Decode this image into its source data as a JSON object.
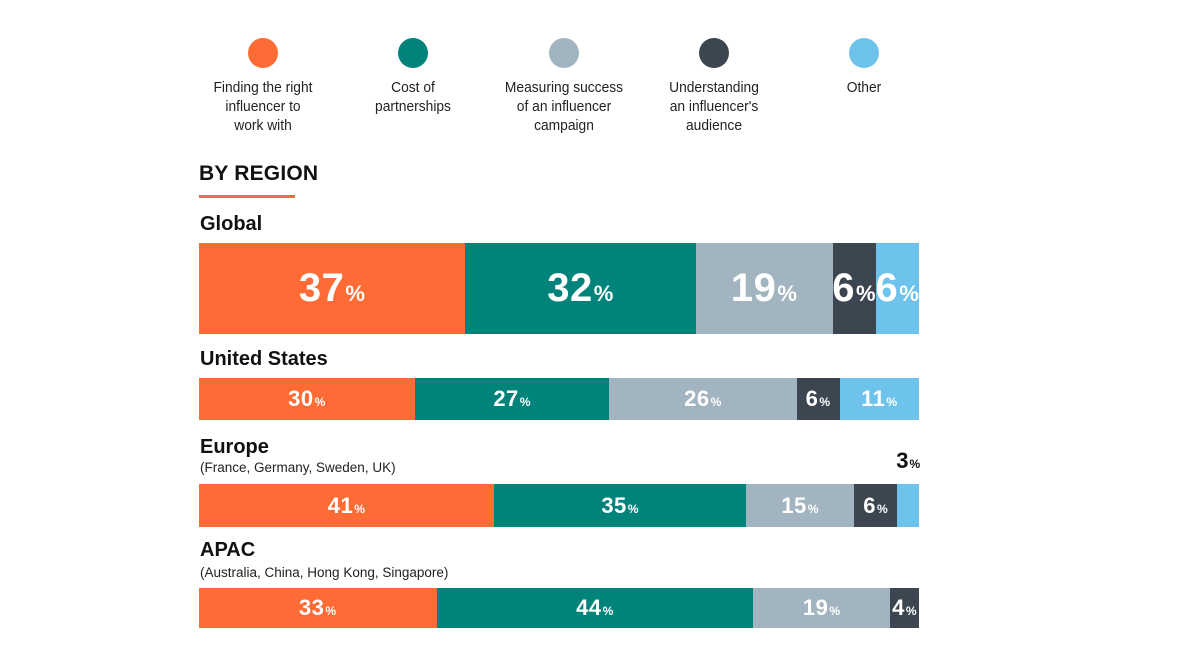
{
  "chart_data": {
    "type": "bar",
    "orientation": "horizontal-stacked-100",
    "section_title": "BY REGION",
    "unit": "%",
    "legend_position": "top",
    "legend": [
      {
        "name": "Finding the right influencer to work with",
        "lines": [
          "Finding the right",
          "influencer to",
          "work with"
        ],
        "color": "#ff6b35"
      },
      {
        "name": "Cost of partnerships",
        "lines": [
          "Cost of",
          "partnerships"
        ],
        "color": "#00837a"
      },
      {
        "name": "Measuring success of an influencer campaign",
        "lines": [
          "Measuring success",
          "of an influencer",
          "campaign"
        ],
        "color": "#a2b4c0"
      },
      {
        "name": "Understanding an influencer's audience",
        "lines": [
          "Understanding",
          "an influencer's",
          "audience"
        ],
        "color": "#3c4651"
      },
      {
        "name": "Other",
        "lines": [
          "Other"
        ],
        "color": "#6ec3ec"
      }
    ],
    "categories": [
      {
        "name": "Global",
        "subtitle": "",
        "values": [
          37,
          32,
          19,
          6,
          6
        ]
      },
      {
        "name": "United States",
        "subtitle": "",
        "values": [
          30,
          27,
          26,
          6,
          11
        ]
      },
      {
        "name": "Europe",
        "subtitle": "(France, Germany, Sweden, UK)",
        "values": [
          41,
          35,
          15,
          6,
          3
        ]
      },
      {
        "name": "APAC",
        "subtitle": "(Australia, China, Hong Kong, Singapore)",
        "values": [
          33,
          44,
          19,
          4
        ]
      }
    ]
  }
}
